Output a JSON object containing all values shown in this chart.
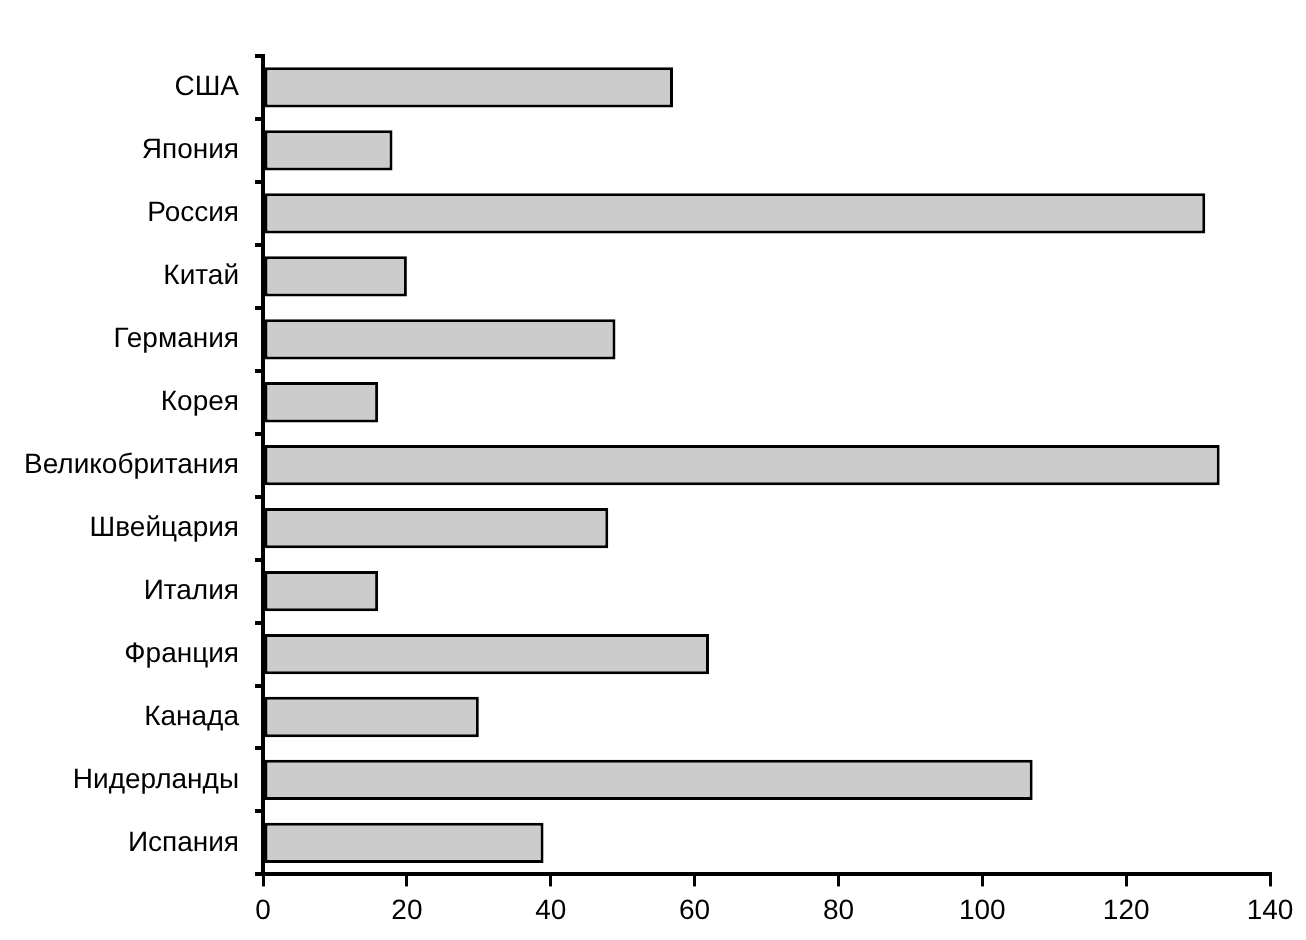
{
  "chart_data": {
    "type": "bar",
    "orientation": "horizontal",
    "categories": [
      "США",
      "Япония",
      "Россия",
      "Китай",
      "Германия",
      "Корея",
      "Великобритания",
      "Швейцария",
      "Италия",
      "Франция",
      "Канада",
      "Нидерланды",
      "Испания"
    ],
    "values": [
      57,
      18,
      131,
      20,
      49,
      16,
      133,
      48,
      16,
      62,
      30,
      107,
      39
    ],
    "color": "#cccccc",
    "xlim": [
      0,
      140
    ],
    "xticks": [
      0,
      20,
      40,
      60,
      80,
      100,
      120,
      140
    ],
    "grid": false,
    "legend": false
  }
}
